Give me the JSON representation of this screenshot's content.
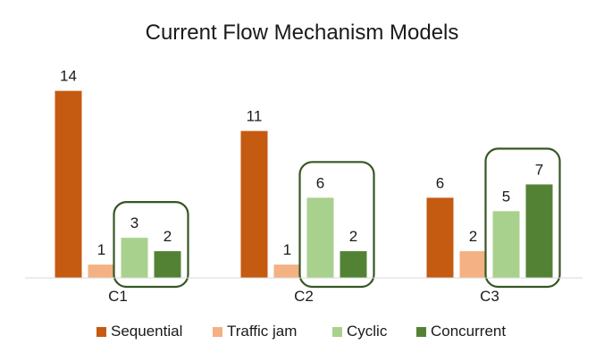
{
  "chart_data": {
    "type": "bar",
    "title": "Current Flow Mechanism Models",
    "categories": [
      "C1",
      "C2",
      "C3"
    ],
    "series": [
      {
        "name": "Sequential",
        "values": [
          14,
          11,
          6
        ],
        "color": "#c55a11"
      },
      {
        "name": "Traffic jam",
        "values": [
          1,
          1,
          2
        ],
        "color": "#f4b183"
      },
      {
        "name": "Cyclic",
        "values": [
          3,
          6,
          5
        ],
        "color": "#a9d18e"
      },
      {
        "name": "Concurrent",
        "values": [
          2,
          2,
          7
        ],
        "color": "#548235"
      }
    ],
    "ylim": [
      0,
      14
    ],
    "grid": false,
    "data_labels": true,
    "legend_position": "bottom",
    "highlight_groups": [
      {
        "category": "C1",
        "series": [
          "Cyclic",
          "Concurrent"
        ]
      },
      {
        "category": "C2",
        "series": [
          "Cyclic",
          "Concurrent"
        ]
      },
      {
        "category": "C3",
        "series": [
          "Cyclic",
          "Concurrent"
        ]
      }
    ],
    "highlight_color": "#375623",
    "axis_color": "#d9d9d9"
  }
}
